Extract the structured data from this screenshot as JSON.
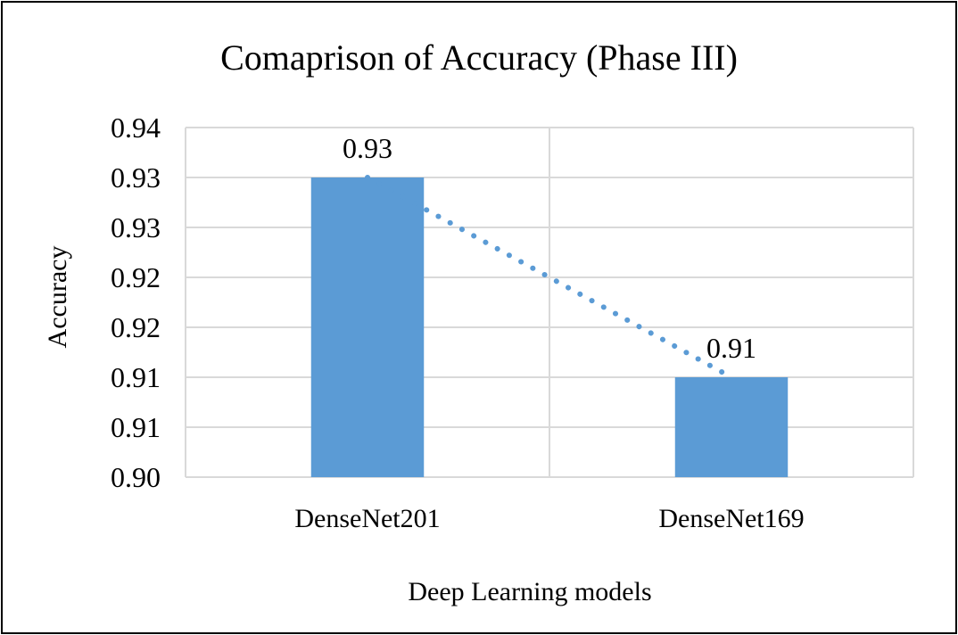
{
  "chart_data": {
    "type": "bar",
    "title": "Comaprison of Accuracy (Phase III)",
    "xlabel": "Deep Learning models",
    "ylabel": "Accuracy",
    "categories": [
      "DenseNet201",
      "DenseNet169"
    ],
    "series": [
      {
        "values": [
          0.93,
          0.91
        ],
        "color": "#5b9bd5"
      }
    ],
    "data_labels": [
      "0.93",
      "0.91"
    ],
    "ylim": [
      0.9,
      0.935
    ],
    "y_ticks": [
      0.9,
      0.905,
      0.91,
      0.915,
      0.92,
      0.925,
      0.93,
      0.935
    ],
    "y_tick_labels": [
      "0.90",
      "0.91",
      "0.91",
      "0.92",
      "0.92",
      "0.93",
      "0.93",
      "0.94"
    ],
    "trendline": {
      "style": "dotted",
      "color": "#5b9bd5"
    },
    "grid": true,
    "legend": "none"
  }
}
